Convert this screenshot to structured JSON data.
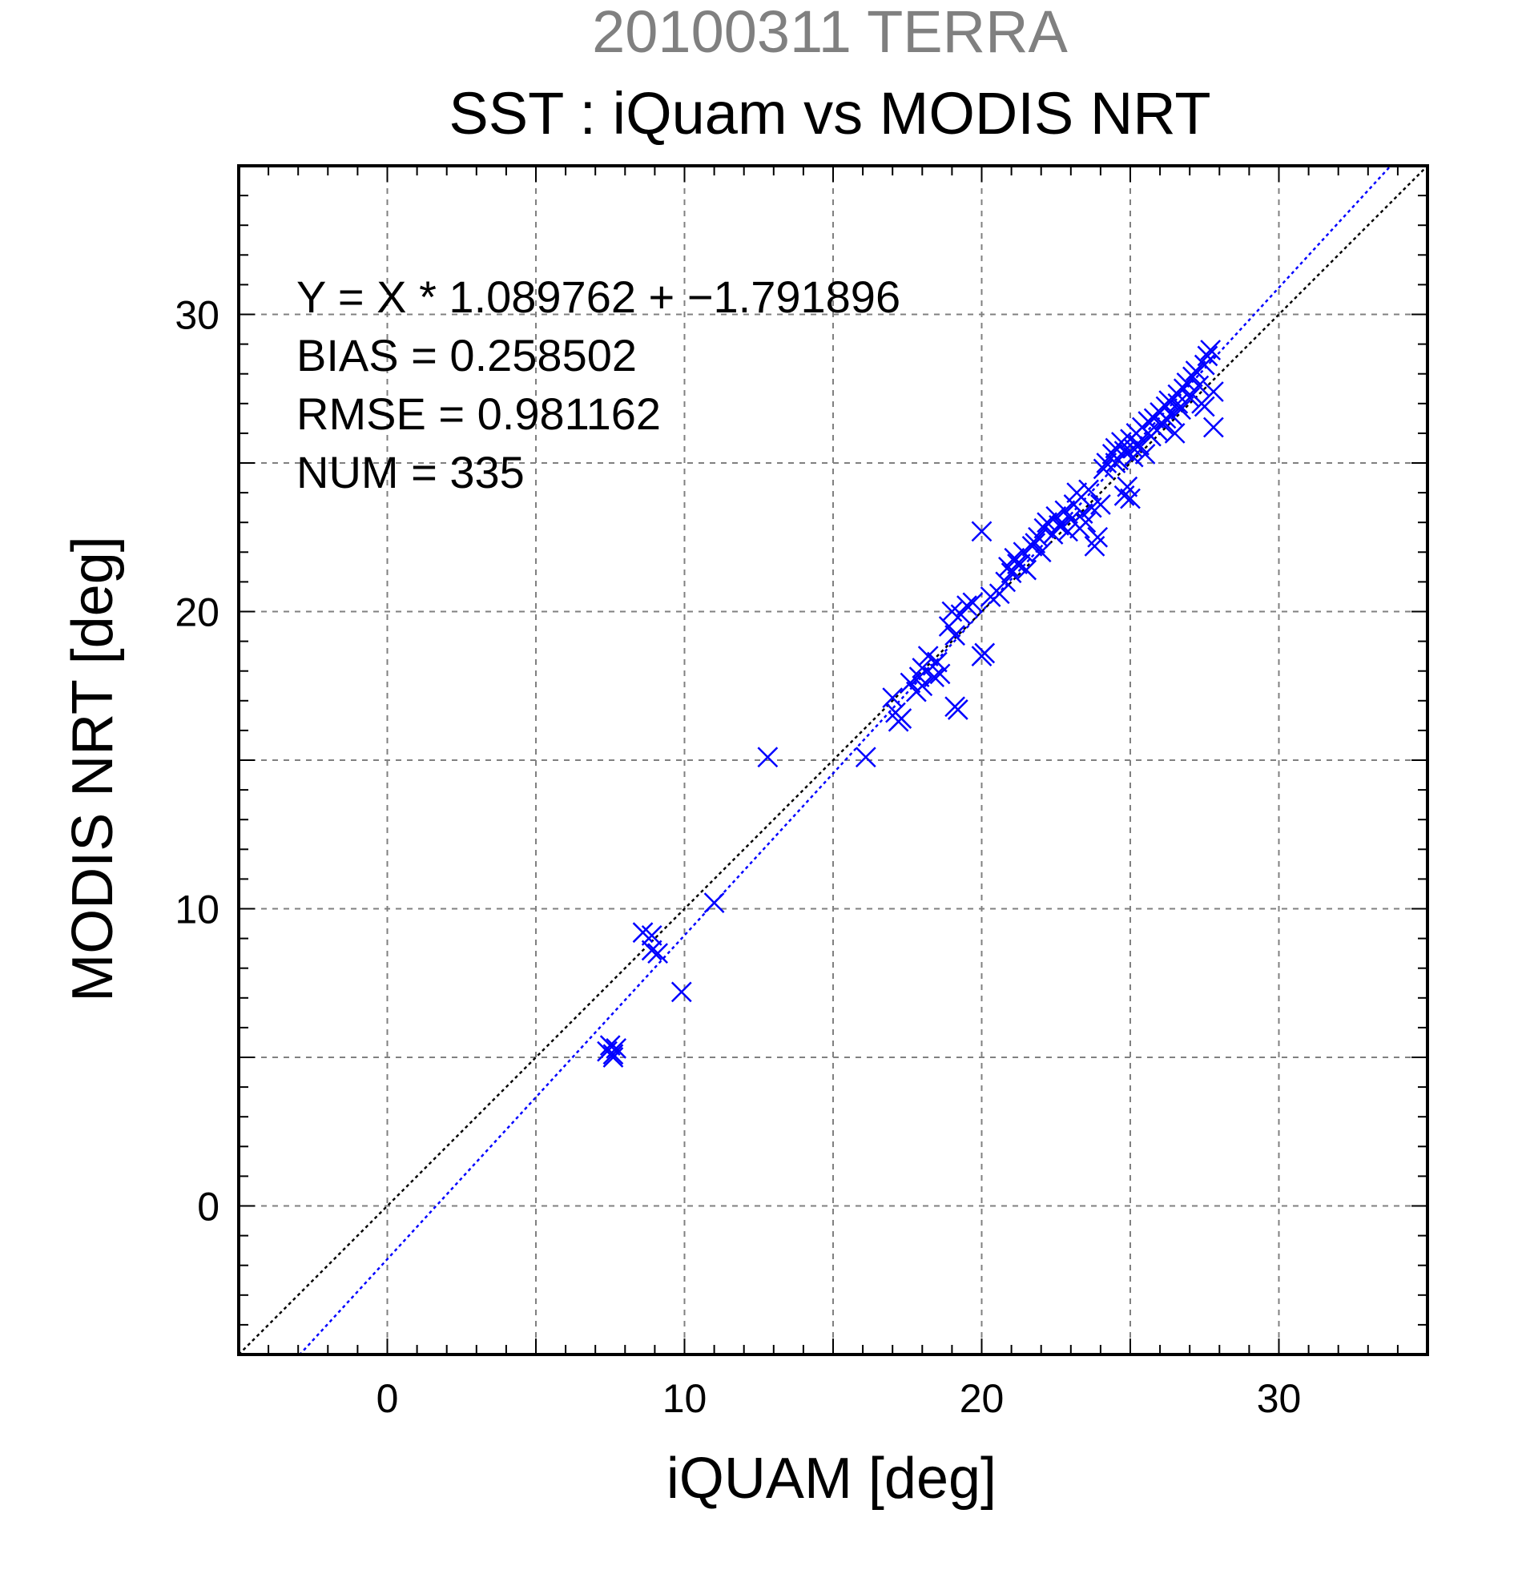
{
  "chart_data": {
    "type": "scatter",
    "title": "20100311 TERRA",
    "subtitle": "SST : iQuam vs MODIS NRT",
    "xlabel": "iQUAM [deg]",
    "ylabel": "MODIS NRT [deg]",
    "xlim": [
      -5,
      35
    ],
    "ylim": [
      -5,
      35
    ],
    "xticks": [
      0,
      10,
      20,
      30
    ],
    "yticks": [
      0,
      10,
      20,
      30
    ],
    "grid": true,
    "marker": "x",
    "colors": {
      "points": "#0000ff",
      "fit_line": "#0000ff",
      "identity_line": "#000000",
      "grid": "#808080"
    },
    "stats": {
      "fit_text": "Y = X * 1.089762 + −1.791896",
      "bias_text": "BIAS = 0.258502",
      "rmse_text": "RMSE = 0.981162",
      "num_text": "NUM = 335"
    },
    "lines": [
      {
        "name": "",
        "slope": 1.089762,
        "intercept": -1.791896,
        "style": "dotted",
        "color": "#0000ff"
      },
      {
        "name": "",
        "slope": 1,
        "intercept": 0,
        "style": "dotted",
        "color": "#000000"
      }
    ],
    "points": [
      [
        7.5,
        5.4
      ],
      [
        7.6,
        5.1
      ],
      [
        7.7,
        5.3
      ],
      [
        7.6,
        5.0
      ],
      [
        7.4,
        5.2
      ],
      [
        8.6,
        9.2
      ],
      [
        8.9,
        9.1
      ],
      [
        8.9,
        8.6
      ],
      [
        9.1,
        8.5
      ],
      [
        9.9,
        7.2
      ],
      [
        11.0,
        10.2
      ],
      [
        12.8,
        15.1
      ],
      [
        16.1,
        15.1
      ],
      [
        17.0,
        17.1
      ],
      [
        17.1,
        16.6
      ],
      [
        17.2,
        16.3
      ],
      [
        17.3,
        16.4
      ],
      [
        17.6,
        17.6
      ],
      [
        17.8,
        17.3
      ],
      [
        17.9,
        17.8
      ],
      [
        18.0,
        17.5
      ],
      [
        18.0,
        18.1
      ],
      [
        18.2,
        18.5
      ],
      [
        18.4,
        17.8
      ],
      [
        18.5,
        18.3
      ],
      [
        18.6,
        17.9
      ],
      [
        18.9,
        19.5
      ],
      [
        19.1,
        19.2
      ],
      [
        19.0,
        20.0
      ],
      [
        19.3,
        19.9
      ],
      [
        19.5,
        20.2
      ],
      [
        19.7,
        20.3
      ],
      [
        19.1,
        16.8
      ],
      [
        19.2,
        16.7
      ],
      [
        20.0,
        18.5
      ],
      [
        20.1,
        18.6
      ],
      [
        20.0,
        22.7
      ],
      [
        20.3,
        20.5
      ],
      [
        20.6,
        20.6
      ],
      [
        20.8,
        21.0
      ],
      [
        20.9,
        21.5
      ],
      [
        21.0,
        21.3
      ],
      [
        21.1,
        21.8
      ],
      [
        21.3,
        21.6
      ],
      [
        21.4,
        22.0
      ],
      [
        21.5,
        21.4
      ],
      [
        21.7,
        22.2
      ],
      [
        21.9,
        22.5
      ],
      [
        22.0,
        22.0
      ],
      [
        22.1,
        22.8
      ],
      [
        22.2,
        23.0
      ],
      [
        22.4,
        22.6
      ],
      [
        22.5,
        23.2
      ],
      [
        22.6,
        22.9
      ],
      [
        22.8,
        23.4
      ],
      [
        22.9,
        22.7
      ],
      [
        23.0,
        23.1
      ],
      [
        23.1,
        23.6
      ],
      [
        23.2,
        24.0
      ],
      [
        23.3,
        22.8
      ],
      [
        23.4,
        23.3
      ],
      [
        23.5,
        23.0
      ],
      [
        23.7,
        23.5
      ],
      [
        23.8,
        22.2
      ],
      [
        23.9,
        22.5
      ],
      [
        24.0,
        23.6
      ],
      [
        24.1,
        24.8
      ],
      [
        24.2,
        25.0
      ],
      [
        24.4,
        25.3
      ],
      [
        24.5,
        25.5
      ],
      [
        24.6,
        25.1
      ],
      [
        24.7,
        25.7
      ],
      [
        24.8,
        25.4
      ],
      [
        24.9,
        24.2
      ],
      [
        24.8,
        23.9
      ],
      [
        25.0,
        23.8
      ],
      [
        25.0,
        25.8
      ],
      [
        25.1,
        25.2
      ],
      [
        25.2,
        26.0
      ],
      [
        25.3,
        25.6
      ],
      [
        25.4,
        26.2
      ],
      [
        25.5,
        25.3
      ],
      [
        25.6,
        26.4
      ],
      [
        25.7,
        25.9
      ],
      [
        25.8,
        26.5
      ],
      [
        25.9,
        26.1
      ],
      [
        26.0,
        26.7
      ],
      [
        26.1,
        26.3
      ],
      [
        26.2,
        26.9
      ],
      [
        26.3,
        27.1
      ],
      [
        26.4,
        26.6
      ],
      [
        26.5,
        26.0
      ],
      [
        26.6,
        27.3
      ],
      [
        26.7,
        26.8
      ],
      [
        26.8,
        27.5
      ],
      [
        26.9,
        27.7
      ],
      [
        27.0,
        27.2
      ],
      [
        27.1,
        27.9
      ],
      [
        27.2,
        28.1
      ],
      [
        27.3,
        27.6
      ],
      [
        27.4,
        27.0
      ],
      [
        27.5,
        28.3
      ],
      [
        27.6,
        28.6
      ],
      [
        27.7,
        28.8
      ],
      [
        27.8,
        27.4
      ],
      [
        27.8,
        26.2
      ],
      [
        27.5,
        26.9
      ],
      [
        26.6,
        27.0
      ],
      [
        26.2,
        26.5
      ],
      [
        25.6,
        26.0
      ],
      [
        25.1,
        25.5
      ],
      [
        24.5,
        25.0
      ],
      [
        23.6,
        24.1
      ],
      [
        22.7,
        22.9
      ],
      [
        21.8,
        22.3
      ],
      [
        21.2,
        21.6
      ]
    ]
  }
}
